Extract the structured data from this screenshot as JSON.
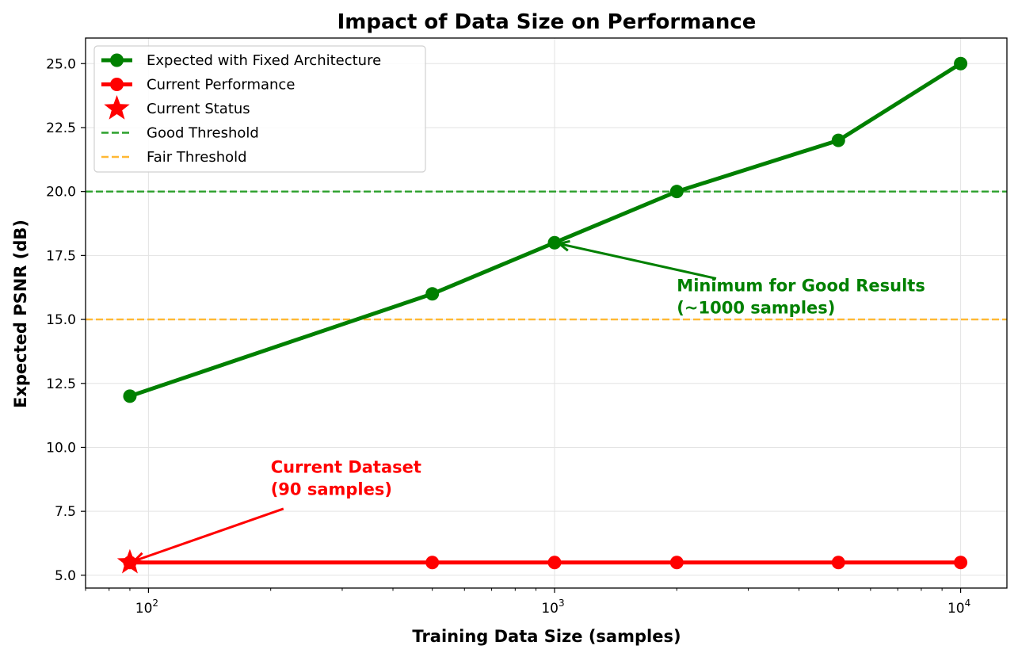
{
  "chart_data": {
    "type": "line",
    "title": "Impact of Data Size on Performance",
    "xlabel": "Training Data Size (samples)",
    "ylabel": "Expected PSNR (dB)",
    "xscale": "log",
    "xlim": [
      70,
      13000
    ],
    "ylim": [
      4.5,
      26
    ],
    "x_ticks": [
      {
        "value": 100,
        "base": "10",
        "exp": "2"
      },
      {
        "value": 1000,
        "base": "10",
        "exp": "3"
      },
      {
        "value": 10000,
        "base": "10",
        "exp": "4"
      }
    ],
    "y_ticks": [
      "5.0",
      "7.5",
      "10.0",
      "12.5",
      "15.0",
      "17.5",
      "20.0",
      "22.5",
      "25.0"
    ],
    "grid": true,
    "legend_position": "top-left",
    "series": [
      {
        "name": "Expected with Fixed Architecture",
        "color": "#008000",
        "marker": "circle",
        "x": [
          90,
          500,
          1000,
          2000,
          5000,
          10000
        ],
        "y": [
          12,
          16,
          18,
          20,
          22,
          25
        ]
      },
      {
        "name": "Current Performance",
        "color": "#ff0000",
        "marker": "circle",
        "x": [
          90,
          500,
          1000,
          2000,
          5000,
          10000
        ],
        "y": [
          5.5,
          5.5,
          5.5,
          5.5,
          5.5,
          5.5
        ]
      }
    ],
    "points": [
      {
        "name": "Current Status",
        "color": "#ff0000",
        "marker": "star",
        "x": 90,
        "y": 5.5
      }
    ],
    "hlines": [
      {
        "name": "Good Threshold",
        "y": 20,
        "color": "#2ca02c",
        "style": "dashed"
      },
      {
        "name": "Fair Threshold",
        "y": 15,
        "color": "#ffb833",
        "style": "dashed"
      }
    ],
    "annotations": [
      {
        "lines": [
          "Current Dataset",
          "(90 samples)"
        ],
        "color": "#ff0000",
        "text_x": 200,
        "text_y": 9.0,
        "arrow_from_x": 215,
        "arrow_from_y": 7.6,
        "target_x": 90,
        "target_y": 5.5
      },
      {
        "lines": [
          "Minimum for Good Results",
          "(~1000 samples)"
        ],
        "color": "#008000",
        "text_x": 2000,
        "text_y": 16.1,
        "arrow_from_x": 2500,
        "arrow_from_y": 16.6,
        "target_x": 1000,
        "target_y": 18
      }
    ]
  }
}
